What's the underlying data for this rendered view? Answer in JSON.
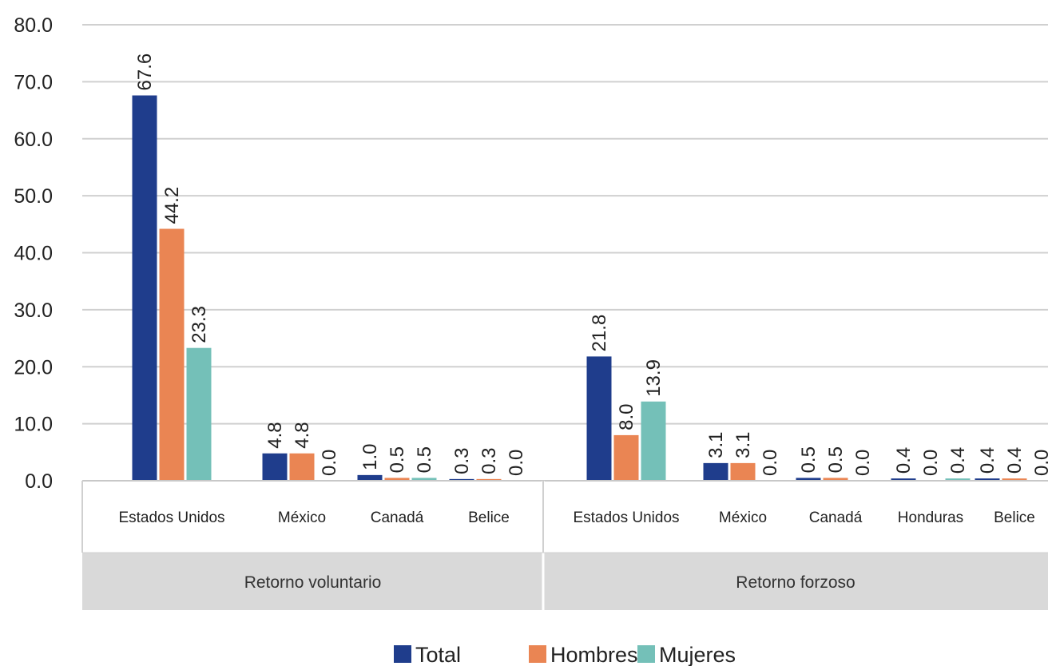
{
  "chart_data": {
    "type": "bar",
    "ylim": [
      0,
      80
    ],
    "yticks": [
      "0.0",
      "10.0",
      "20.0",
      "30.0",
      "40.0",
      "50.0",
      "60.0",
      "70.0",
      "80.0"
    ],
    "grid": true,
    "legend_position": "bottom",
    "series": [
      {
        "name": "Total",
        "color": "#1f3d8c"
      },
      {
        "name": "Hombres",
        "color": "#ea8553"
      },
      {
        "name": "Mujeres",
        "color": "#74c0b8"
      }
    ],
    "groups": [
      {
        "label": "Retorno voluntario",
        "categories": [
          {
            "label": "Estados Unidos",
            "values": [
              67.6,
              44.2,
              23.3
            ],
            "labels": [
              "67.6",
              "44.2",
              "23.3"
            ]
          },
          {
            "label": "México",
            "values": [
              4.8,
              4.8,
              0.0
            ],
            "labels": [
              "4.8",
              "4.8",
              "0.0"
            ]
          },
          {
            "label": "Canadá",
            "values": [
              1.0,
              0.5,
              0.5
            ],
            "labels": [
              "1.0",
              "0.5",
              "0.5"
            ]
          },
          {
            "label": "Belice",
            "values": [
              0.3,
              0.3,
              0.0
            ],
            "labels": [
              "0.3",
              "0.3",
              "0.0"
            ]
          }
        ]
      },
      {
        "label": "Retorno forzoso",
        "categories": [
          {
            "label": "Estados Unidos",
            "values": [
              21.8,
              8.0,
              13.9
            ],
            "labels": [
              "21.8",
              "8.0",
              "13.9"
            ]
          },
          {
            "label": "México",
            "values": [
              3.1,
              3.1,
              0.0
            ],
            "labels": [
              "3.1",
              "3.1",
              "0.0"
            ]
          },
          {
            "label": "Canadá",
            "values": [
              0.5,
              0.5,
              0.0
            ],
            "labels": [
              "0.5",
              "0.5",
              "0.0"
            ]
          },
          {
            "label": "Honduras",
            "values": [
              0.4,
              0.0,
              0.4
            ],
            "labels": [
              "0.4",
              "0.0",
              "0.4"
            ]
          },
          {
            "label": "Belice",
            "values": [
              0.4,
              0.4,
              0.0
            ],
            "labels": [
              "0.4",
              "0.4",
              "0.0"
            ]
          }
        ]
      }
    ]
  }
}
